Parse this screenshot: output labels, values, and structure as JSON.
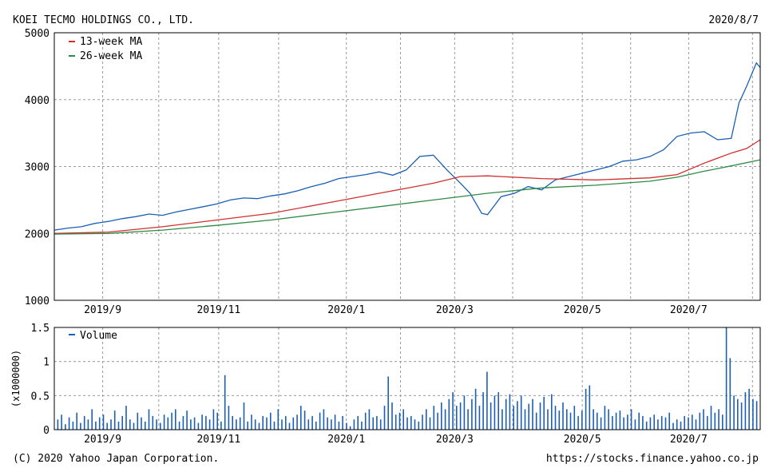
{
  "header": {
    "company": "KOEI TECMO HOLDINGS CO., LTD.",
    "date": "2020/8/7"
  },
  "footer": {
    "copyright": "(C) 2020 Yahoo Japan Corporation.",
    "url": "https://stocks.finance.yahoo.co.jp"
  },
  "colors": {
    "price": "#1a5fb4",
    "ma13": "#d0302f",
    "ma26": "#2e8b46",
    "volume": "#1a5fb4",
    "grid": "#9a9a9a",
    "frame": "#000000"
  },
  "chart_data": [
    {
      "type": "line",
      "legend_position": "top-left",
      "grid": true,
      "x_range": [
        "2019-08-08",
        "2020-08-07"
      ],
      "ylim": [
        1000,
        5000
      ],
      "yticks": [
        "1000",
        "2000",
        "3000",
        "4000",
        "5000"
      ],
      "xticks": [
        {
          "label": "2019/9",
          "date": "2019-09-02"
        },
        {
          "label": "2019/11",
          "date": "2019-11-01"
        },
        {
          "label": "2020/1",
          "date": "2020-01-06"
        },
        {
          "label": "2020/3",
          "date": "2020-03-02"
        },
        {
          "label": "2020/5",
          "date": "2020-05-07"
        },
        {
          "label": "2020/7",
          "date": "2020-07-01"
        }
      ],
      "series": [
        {
          "name": "",
          "role": "price",
          "points": [
            [
              "2019-08-08",
              2050
            ],
            [
              "2019-08-15",
              2080
            ],
            [
              "2019-08-22",
              2100
            ],
            [
              "2019-08-29",
              2150
            ],
            [
              "2019-09-05",
              2180
            ],
            [
              "2019-09-12",
              2220
            ],
            [
              "2019-09-19",
              2250
            ],
            [
              "2019-09-26",
              2290
            ],
            [
              "2019-10-03",
              2270
            ],
            [
              "2019-10-10",
              2320
            ],
            [
              "2019-10-17",
              2360
            ],
            [
              "2019-10-24",
              2400
            ],
            [
              "2019-10-31",
              2440
            ],
            [
              "2019-11-07",
              2500
            ],
            [
              "2019-11-14",
              2530
            ],
            [
              "2019-11-21",
              2520
            ],
            [
              "2019-11-28",
              2560
            ],
            [
              "2019-12-05",
              2590
            ],
            [
              "2019-12-12",
              2640
            ],
            [
              "2019-12-19",
              2700
            ],
            [
              "2019-12-26",
              2750
            ],
            [
              "2020-01-02",
              2820
            ],
            [
              "2020-01-09",
              2850
            ],
            [
              "2020-01-16",
              2880
            ],
            [
              "2020-01-23",
              2920
            ],
            [
              "2020-01-30",
              2870
            ],
            [
              "2020-02-06",
              2950
            ],
            [
              "2020-02-13",
              3150
            ],
            [
              "2020-02-20",
              3170
            ],
            [
              "2020-02-27",
              2950
            ],
            [
              "2020-03-05",
              2750
            ],
            [
              "2020-03-10",
              2600
            ],
            [
              "2020-03-16",
              2300
            ],
            [
              "2020-03-19",
              2280
            ],
            [
              "2020-03-26",
              2550
            ],
            [
              "2020-04-02",
              2600
            ],
            [
              "2020-04-09",
              2700
            ],
            [
              "2020-04-16",
              2650
            ],
            [
              "2020-04-23",
              2800
            ],
            [
              "2020-04-30",
              2850
            ],
            [
              "2020-05-07",
              2900
            ],
            [
              "2020-05-14",
              2950
            ],
            [
              "2020-05-21",
              3000
            ],
            [
              "2020-05-28",
              3080
            ],
            [
              "2020-06-04",
              3100
            ],
            [
              "2020-06-11",
              3150
            ],
            [
              "2020-06-18",
              3250
            ],
            [
              "2020-06-25",
              3450
            ],
            [
              "2020-07-02",
              3500
            ],
            [
              "2020-07-09",
              3520
            ],
            [
              "2020-07-16",
              3400
            ],
            [
              "2020-07-23",
              3420
            ],
            [
              "2020-07-27",
              3950
            ],
            [
              "2020-07-31",
              4200
            ],
            [
              "2020-08-05",
              4550
            ],
            [
              "2020-08-07",
              4480
            ]
          ]
        },
        {
          "name": "13-week MA",
          "role": "ma13",
          "points": [
            [
              "2019-08-08",
              2000
            ],
            [
              "2019-09-05",
              2020
            ],
            [
              "2019-10-03",
              2100
            ],
            [
              "2019-10-31",
              2200
            ],
            [
              "2019-11-28",
              2300
            ],
            [
              "2019-12-26",
              2450
            ],
            [
              "2020-01-23",
              2600
            ],
            [
              "2020-02-20",
              2750
            ],
            [
              "2020-03-05",
              2850
            ],
            [
              "2020-03-19",
              2860
            ],
            [
              "2020-04-16",
              2820
            ],
            [
              "2020-05-14",
              2800
            ],
            [
              "2020-06-11",
              2830
            ],
            [
              "2020-06-25",
              2880
            ],
            [
              "2020-07-09",
              3050
            ],
            [
              "2020-07-23",
              3200
            ],
            [
              "2020-07-31",
              3270
            ],
            [
              "2020-08-07",
              3400
            ]
          ]
        },
        {
          "name": "26-week MA",
          "role": "ma26",
          "points": [
            [
              "2019-08-08",
              1990
            ],
            [
              "2019-09-05",
              2000
            ],
            [
              "2019-10-03",
              2050
            ],
            [
              "2019-10-31",
              2120
            ],
            [
              "2019-11-28",
              2200
            ],
            [
              "2019-12-26",
              2300
            ],
            [
              "2020-01-23",
              2400
            ],
            [
              "2020-02-20",
              2500
            ],
            [
              "2020-03-19",
              2600
            ],
            [
              "2020-04-16",
              2680
            ],
            [
              "2020-05-14",
              2720
            ],
            [
              "2020-06-11",
              2780
            ],
            [
              "2020-06-25",
              2840
            ],
            [
              "2020-07-09",
              2930
            ],
            [
              "2020-07-23",
              3010
            ],
            [
              "2020-08-07",
              3100
            ]
          ]
        }
      ]
    },
    {
      "type": "bar",
      "legend_position": "top-left",
      "grid": true,
      "ylabel": "(x1000000)",
      "ylim": [
        0,
        1.5
      ],
      "yticks": [
        "0",
        "0.5",
        "1",
        "1.5"
      ],
      "series": [
        {
          "name": "Volume",
          "values": [
            0.15,
            0.22,
            0.08,
            0.18,
            0.12,
            0.25,
            0.1,
            0.2,
            0.15,
            0.3,
            0.12,
            0.18,
            0.22,
            0.1,
            0.15,
            0.28,
            0.12,
            0.2,
            0.35,
            0.15,
            0.1,
            0.25,
            0.18,
            0.12,
            0.3,
            0.2,
            0.15,
            0.1,
            0.22,
            0.18,
            0.25,
            0.3,
            0.12,
            0.2,
            0.28,
            0.15,
            0.18,
            0.1,
            0.22,
            0.2,
            0.15,
            0.3,
            0.25,
            0.12,
            0.8,
            0.35,
            0.2,
            0.15,
            0.18,
            0.4,
            0.12,
            0.22,
            0.15,
            0.1,
            0.2,
            0.18,
            0.25,
            0.12,
            0.3,
            0.15,
            0.2,
            0.1,
            0.18,
            0.22,
            0.35,
            0.28,
            0.15,
            0.2,
            0.12,
            0.25,
            0.3,
            0.18,
            0.15,
            0.22,
            0.12,
            0.2,
            0.1,
            0.05,
            0.15,
            0.2,
            0.12,
            0.25,
            0.3,
            0.18,
            0.2,
            0.15,
            0.35,
            0.78,
            0.4,
            0.22,
            0.25,
            0.3,
            0.18,
            0.2,
            0.15,
            0.12,
            0.22,
            0.3,
            0.18,
            0.35,
            0.25,
            0.4,
            0.3,
            0.45,
            0.55,
            0.35,
            0.4,
            0.5,
            0.3,
            0.45,
            0.6,
            0.35,
            0.55,
            0.85,
            0.4,
            0.5,
            0.55,
            0.3,
            0.45,
            0.52,
            0.35,
            0.42,
            0.5,
            0.3,
            0.38,
            0.45,
            0.25,
            0.4,
            0.48,
            0.3,
            0.52,
            0.35,
            0.28,
            0.4,
            0.3,
            0.25,
            0.35,
            0.2,
            0.28,
            0.6,
            0.65,
            0.3,
            0.25,
            0.18,
            0.35,
            0.3,
            0.2,
            0.25,
            0.28,
            0.18,
            0.22,
            0.3,
            0.15,
            0.25,
            0.2,
            0.12,
            0.18,
            0.22,
            0.15,
            0.2,
            0.18,
            0.25,
            0.1,
            0.15,
            0.12,
            0.2,
            0.18,
            0.22,
            0.15,
            0.25,
            0.3,
            0.2,
            0.35,
            0.25,
            0.3,
            0.22,
            1.5,
            1.05,
            0.5,
            0.45,
            0.4,
            0.55,
            0.6,
            0.45,
            0.42
          ]
        }
      ]
    }
  ]
}
